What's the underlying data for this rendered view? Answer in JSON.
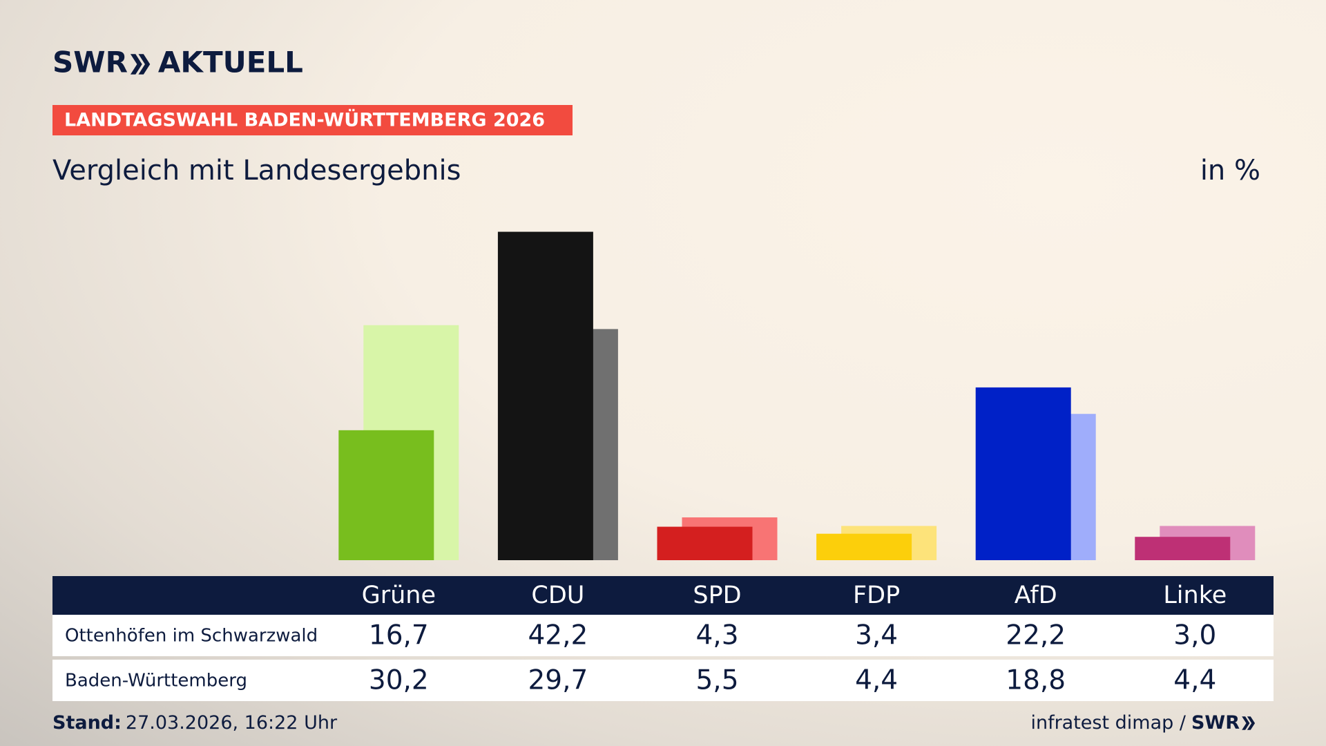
{
  "chart_data": {
    "type": "bar",
    "brand": "SWR",
    "brand_suffix": "AKTUELL",
    "kicker": "LANDTAGSWAHL BADEN-WÜRTTEMBERG 2026",
    "title": "Vergleich mit Landesergebnis",
    "unit_label": "in %",
    "categories": [
      "Grüne",
      "CDU",
      "SPD",
      "FDP",
      "AfD",
      "Linke"
    ],
    "series": [
      {
        "name": "Ottenhöfen im Schwarzwald",
        "colors": [
          "#78be1e",
          "#141414",
          "#d41f1f",
          "#fccf0b",
          "#0021c7",
          "#be3075"
        ],
        "values": [
          16.7,
          42.2,
          4.3,
          3.4,
          22.2,
          3.0
        ],
        "value_labels": [
          "16,7",
          "42,2",
          "4,3",
          "3,4",
          "22,2",
          "3,0"
        ]
      },
      {
        "name": "Baden-Württemberg",
        "colors": [
          "#d8f5a8",
          "#707070",
          "#f87474",
          "#fde37a",
          "#9fadfb",
          "#e08dbc"
        ],
        "values": [
          30.2,
          29.7,
          5.5,
          4.4,
          18.8,
          4.4
        ],
        "value_labels": [
          "30,2",
          "29,7",
          "5,5",
          "4,4",
          "18,8",
          "4,4"
        ]
      }
    ],
    "ylim": [
      0,
      45
    ],
    "footnote_label": "Stand:",
    "footnote": "27.03.2026, 16:22 Uhr",
    "source": "infratest dimap /",
    "source_brand": "SWR"
  }
}
